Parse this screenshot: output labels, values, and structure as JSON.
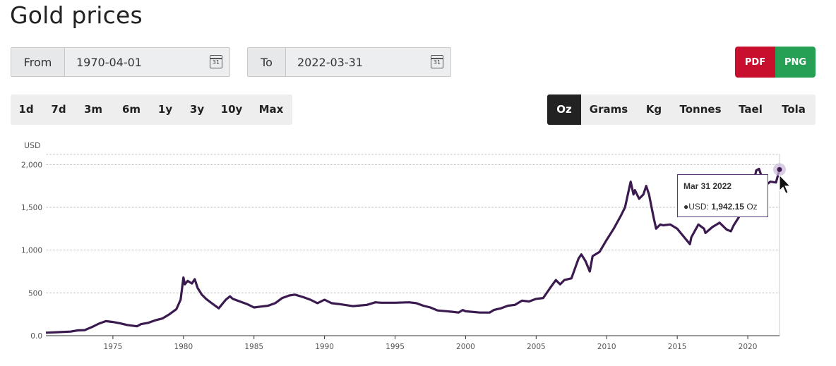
{
  "page": {
    "title": "Gold prices"
  },
  "date_range": {
    "from_label": "From",
    "from_value": "1970-04-01",
    "from_icon_text": "31",
    "to_label": "To",
    "to_value": "2022-03-31",
    "to_icon_text": "31"
  },
  "export": {
    "pdf_label": "PDF",
    "png_label": "PNG",
    "pdf_color": "#c8102e",
    "png_color": "#25a055"
  },
  "ranges": [
    "1d",
    "7d",
    "3m",
    "6m",
    "1y",
    "3y",
    "10y",
    "Max"
  ],
  "units": {
    "items": [
      "Oz",
      "Grams",
      "Kg",
      "Tonnes",
      "Tael",
      "Tola"
    ],
    "selected": "Oz"
  },
  "tooltip": {
    "date": "Mar 31 2022",
    "series_label": "USD",
    "value": "1,942.15",
    "unit": "Oz"
  },
  "chart_data": {
    "type": "line",
    "ylabel": "USD",
    "xlim": [
      1970.25,
      2022.25
    ],
    "ylim": [
      0,
      2250
    ],
    "y_ticks": [
      0,
      500,
      1000,
      1500,
      2000
    ],
    "y_tick_labels": [
      "0.0",
      "500",
      "1,000",
      "1,500",
      "2,000"
    ],
    "x_ticks": [
      1975,
      1980,
      1985,
      1990,
      1995,
      2000,
      2005,
      2010,
      2015,
      2020
    ],
    "x_tick_labels": [
      "1975",
      "1980",
      "1985",
      "1990",
      "1995",
      "2000",
      "2005",
      "2010",
      "2015",
      "2020"
    ],
    "grid": "horizontal dotted",
    "line_color": "#3b1a4f",
    "series": [
      {
        "x": [
          1970.25,
          1971,
          1972,
          1972.5,
          1973,
          1973.5,
          1974,
          1974.5,
          1975,
          1975.5,
          1976,
          1976.7,
          1977,
          1977.5,
          1978,
          1978.5,
          1979,
          1979.5,
          1979.8,
          1980.0,
          1980.1,
          1980.3,
          1980.6,
          1980.8,
          1981,
          1981.3,
          1981.6,
          1982,
          1982.5,
          1983,
          1983.3,
          1983.5,
          1984,
          1984.5,
          1985,
          1985.5,
          1986,
          1986.5,
          1987,
          1987.5,
          1987.9,
          1988.5,
          1989,
          1989.5,
          1990,
          1990.5,
          1991,
          1992,
          1993,
          1993.6,
          1994,
          1995,
          1996,
          1996.5,
          1997,
          1997.5,
          1998,
          1999,
          1999.5,
          1999.8,
          2000,
          2001,
          2001.7,
          2002,
          2002.5,
          2003,
          2003.5,
          2004,
          2004.5,
          2005,
          2005.5,
          2006,
          2006.4,
          2006.7,
          2007,
          2007.5,
          2008,
          2008.2,
          2008.5,
          2008.8,
          2009,
          2009.5,
          2010,
          2010.5,
          2011,
          2011.3,
          2011.7,
          2011.9,
          2012,
          2012.3,
          2012.6,
          2012.8,
          2013,
          2013.3,
          2013.5,
          2013.8,
          2014,
          2014.5,
          2015,
          2015.5,
          2015.9,
          2016,
          2016.5,
          2016.9,
          2017,
          2017.5,
          2018,
          2018.5,
          2018.8,
          2019,
          2019.5,
          2019.9,
          2020,
          2020.3,
          2020.6,
          2020.8,
          2021,
          2021.2,
          2021.6,
          2022.0,
          2022.25
        ],
        "y": [
          35,
          40,
          48,
          62,
          65,
          100,
          140,
          170,
          160,
          145,
          125,
          110,
          135,
          150,
          180,
          200,
          250,
          310,
          420,
          680,
          600,
          640,
          610,
          660,
          560,
          480,
          430,
          380,
          320,
          420,
          460,
          430,
          400,
          370,
          330,
          340,
          350,
          380,
          440,
          470,
          480,
          450,
          420,
          380,
          420,
          380,
          370,
          345,
          360,
          390,
          385,
          385,
          390,
          380,
          350,
          330,
          295,
          280,
          270,
          300,
          285,
          270,
          270,
          300,
          320,
          350,
          360,
          410,
          400,
          430,
          440,
          560,
          650,
          600,
          650,
          670,
          900,
          950,
          870,
          750,
          930,
          980,
          1120,
          1250,
          1400,
          1500,
          1800,
          1650,
          1700,
          1600,
          1650,
          1750,
          1650,
          1400,
          1250,
          1300,
          1290,
          1300,
          1250,
          1150,
          1070,
          1150,
          1300,
          1250,
          1200,
          1270,
          1320,
          1240,
          1220,
          1290,
          1420,
          1480,
          1560,
          1700,
          1930,
          1950,
          1850,
          1750,
          1800,
          1790,
          1942.15
        ]
      }
    ]
  }
}
